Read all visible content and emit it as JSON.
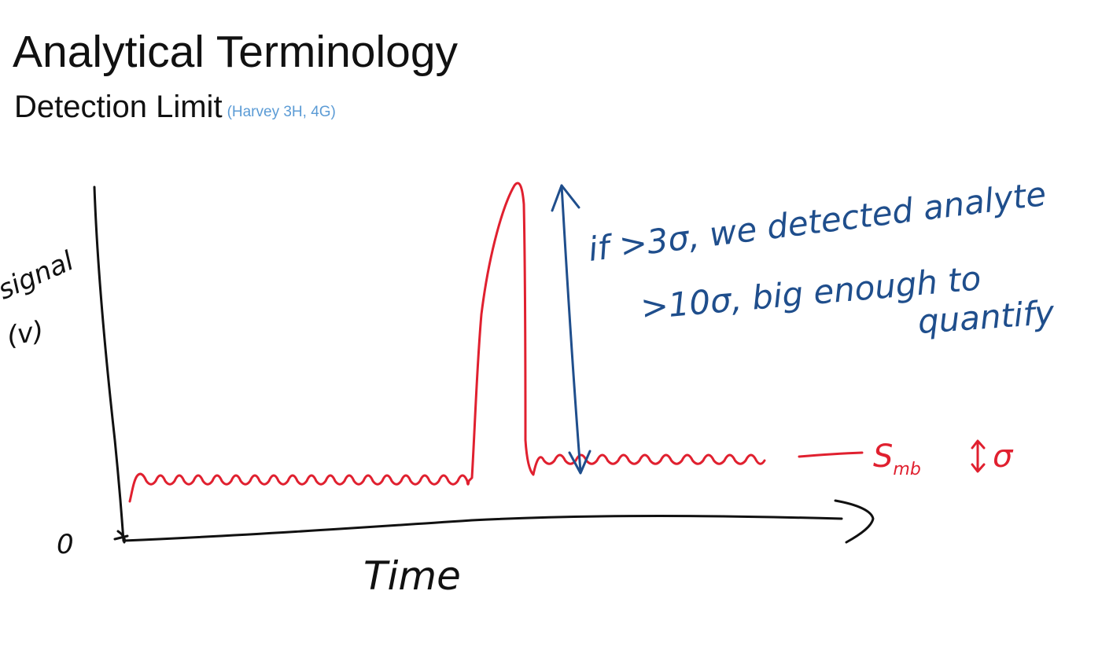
{
  "slide": {
    "title": "Analytical Terminology",
    "subtitle": "Detection Limit",
    "reference": "(Harvey 3H, 4G)"
  },
  "sketch": {
    "y_axis_label_line1": "signal",
    "y_axis_label_line2": "(v)",
    "origin_label": "0",
    "x_axis_label": "Time",
    "blank_label": "S",
    "blank_subscript": "mb",
    "sigma_label": "σ",
    "annotation_line1": "if >3σ, we detected analyte",
    "annotation_line2": ">10σ, big enough to",
    "annotation_line3": "quantify",
    "colors": {
      "axes": "#111111",
      "signal": "#e0202f",
      "annotation": "#1f4e8c",
      "reference": "#5b9bd5"
    }
  }
}
